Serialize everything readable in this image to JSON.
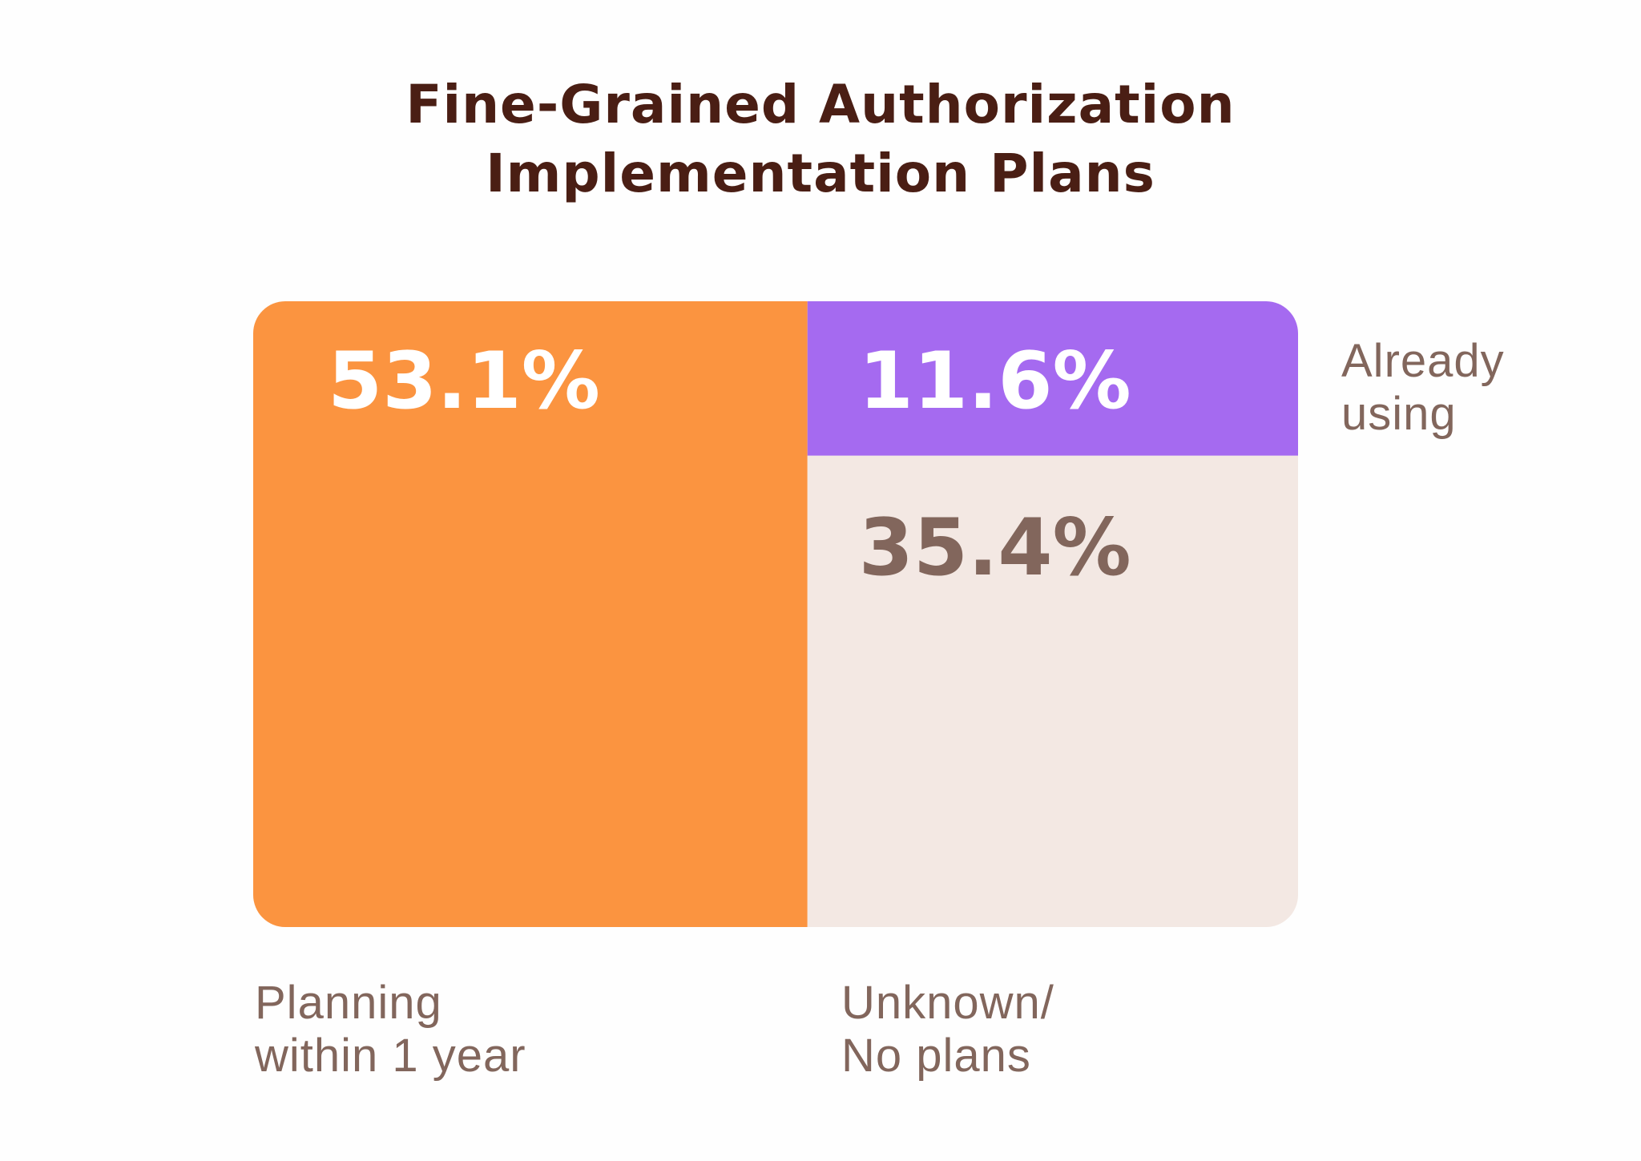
{
  "chart_data": {
    "type": "mosaic",
    "title_lines": [
      "Fine-Grained Authorization",
      "Implementation Plans"
    ],
    "segments": [
      {
        "key": "planning",
        "label_lines": [
          "Planning",
          "within 1 year"
        ],
        "value": 53.1,
        "value_label": "53.1%",
        "color": "#fb9440",
        "text_color": "#ffffff"
      },
      {
        "key": "already",
        "label_lines": [
          "Already",
          "using"
        ],
        "value": 11.6,
        "value_label": "11.6%",
        "color": "#a56af0",
        "text_color": "#ffffff"
      },
      {
        "key": "unknown",
        "label_lines": [
          "Unknown/",
          "No plans"
        ],
        "value": 35.4,
        "value_label": "35.4%",
        "color": "#f3e8e3",
        "text_color": "#82665c"
      }
    ],
    "unit": "%"
  }
}
